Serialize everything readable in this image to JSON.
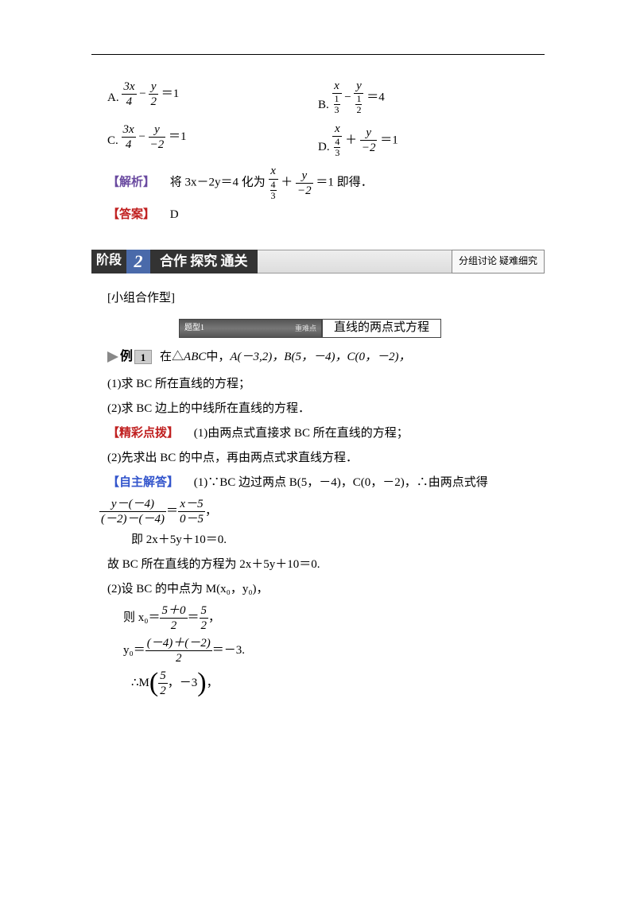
{
  "colors": {
    "analysis": "#6a4aa0",
    "answer": "#c02020",
    "hint": "#c02020",
    "solve": "#3355cc",
    "banner_dark": "#333333",
    "banner_blue": "#4a6aaa",
    "text": "#000000",
    "background": "#ffffff"
  },
  "typography": {
    "body_fontsize_pt": 11,
    "banner_fontsize_pt": 13,
    "math_style": "italic-serif"
  },
  "options": {
    "A": {
      "label": "A.",
      "expr": {
        "t1_num": "3x",
        "t1_den": "4",
        "op": "−",
        "t2_num": "y",
        "t2_den": "2",
        "rhs": "＝1"
      }
    },
    "B": {
      "label": "B.",
      "expr": {
        "t1_num": "x",
        "t1_den_num": "1",
        "t1_den_den": "3",
        "op": "−",
        "t2_num": "y",
        "t2_den_num": "1",
        "t2_den_den": "2",
        "rhs": "＝4"
      }
    },
    "C": {
      "label": "C.",
      "expr": {
        "t1_num": "3x",
        "t1_den": "4",
        "op": "−",
        "t2_num": "y",
        "t2_den": "−2",
        "rhs": "＝1"
      }
    },
    "D": {
      "label": "D.",
      "expr": {
        "t1_num": "x",
        "t1_den_num": "4",
        "t1_den_den": "3",
        "op": "＋",
        "t2_num": "y",
        "t2_den": "−2",
        "rhs": "＝1"
      }
    }
  },
  "analysis": {
    "tag": "【解析】",
    "pre": "　将 3x－2y＝4 化为",
    "expr": {
      "t1_num": "x",
      "t1_den_num": "4",
      "t1_den_den": "3",
      "op": "＋",
      "t2_num": "y",
      "t2_den": "−2",
      "rhs": "＝1"
    },
    "post": " 即得．"
  },
  "answer": {
    "tag": "【答案】",
    "value": "　D"
  },
  "banner": {
    "stage": "阶段",
    "num": "2",
    "title": "合作 探究 通关",
    "right": "分组讨论 疑难细究"
  },
  "group_type": "[小组合作型]",
  "topic": {
    "left_a": "题型1",
    "left_b": "重难点",
    "title": "直线的两点式方程"
  },
  "example": {
    "label": "例",
    "num": "1",
    "stem_pre": "在△",
    "stem_tri": "ABC",
    "stem_mid": " 中，",
    "A": "A(－3,2)，",
    "B": "B(5，－4)，",
    "C": "C(0，－2)，"
  },
  "q1": "(1)求 BC 所在直线的方程；",
  "q2": "(2)求 BC 边上的中线所在直线的方程．",
  "hint": {
    "tag": "【精彩点拨】",
    "l1": "　(1)由两点式直接求 BC 所在直线的方程；",
    "l2": "(2)先求出 BC 的中点，再由两点式求直线方程．"
  },
  "solve": {
    "tag": "【自主解答】",
    "l1": "　(1)∵BC 边过两点 B(5，－4)，C(0，－2)，∴由两点式得"
  },
  "eq1": {
    "left_num": "y－(－4)",
    "left_den": "(－2)－(－4)",
    "right_num": "x－5",
    "right_den": "0－5",
    "eq": "＝",
    "tail": "，"
  },
  "line_simpl": "即 2x＋5y＋10＝0.",
  "line_conc": "故 BC 所在直线的方程为 2x＋5y＋10＝0.",
  "part2_intro": "(2)设 BC 的中点为 M(x₀，y₀)，",
  "x0": {
    "pre": "则 x₀＝",
    "num": "5＋0",
    "den": "2",
    "eq": "＝",
    "r_num": "5",
    "r_den": "2",
    "tail": "，"
  },
  "y0": {
    "pre": "y₀＝",
    "num": "(－4)＋(－2)",
    "den": "2",
    "eq": "＝－3."
  },
  "M": {
    "pre": "∴M",
    "a_num": "5",
    "a_den": "2",
    "sep": "，",
    "b": "－3",
    "tail": "，"
  }
}
